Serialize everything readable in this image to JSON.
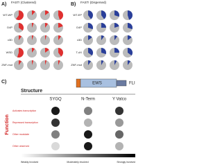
{
  "panel_a": {
    "label": "A)",
    "title": "FAST! (Clustered)",
    "color": "#e03030",
    "rows": [
      "WT-WP",
      "D4P",
      "x3D",
      "WSD",
      "ZNF-mut"
    ],
    "values": [
      [
        0.6,
        0.12,
        0.15,
        0.45
      ],
      [
        0.35,
        0.06,
        0.1,
        0.2
      ],
      [
        0.1,
        0.05,
        0.05,
        0.1
      ],
      [
        0.55,
        0.1,
        0.15,
        0.4
      ],
      [
        0.1,
        0.05,
        0.05,
        0.06
      ]
    ]
  },
  "panel_b": {
    "label": "B)",
    "title": "FAST! (Dispersed)",
    "color": "#2a3f9a",
    "rows": [
      "WT-EP",
      "D4P",
      "x3D",
      "T-dX",
      "ZNF-mut"
    ],
    "values": [
      [
        0.4,
        0.4,
        0.3,
        0.45
      ],
      [
        0.3,
        0.25,
        0.2,
        0.3
      ],
      [
        0.15,
        0.1,
        0.1,
        0.15
      ],
      [
        0.35,
        0.3,
        0.25,
        0.35
      ],
      [
        0.1,
        0.08,
        0.08,
        0.1
      ]
    ]
  },
  "panel_c": {
    "label": "C)",
    "structure": "Structure",
    "domains": [
      "EWS",
      "FLI"
    ],
    "columns": [
      "SYGQ",
      "N-Term",
      "Y Valco"
    ],
    "function": "Function",
    "rows": [
      "Activates transcription",
      "Repressed transcription",
      "Other modulate",
      "Other observed"
    ],
    "levels": [
      [
        0.9,
        0.5,
        0.8
      ],
      [
        0.8,
        0.3,
        0.4
      ],
      [
        0.5,
        0.9,
        0.6
      ],
      [
        0.15,
        0.9,
        0.3
      ]
    ],
    "scale": [
      "Weakly involved",
      "Moderately involved",
      "Strongly involved"
    ]
  }
}
